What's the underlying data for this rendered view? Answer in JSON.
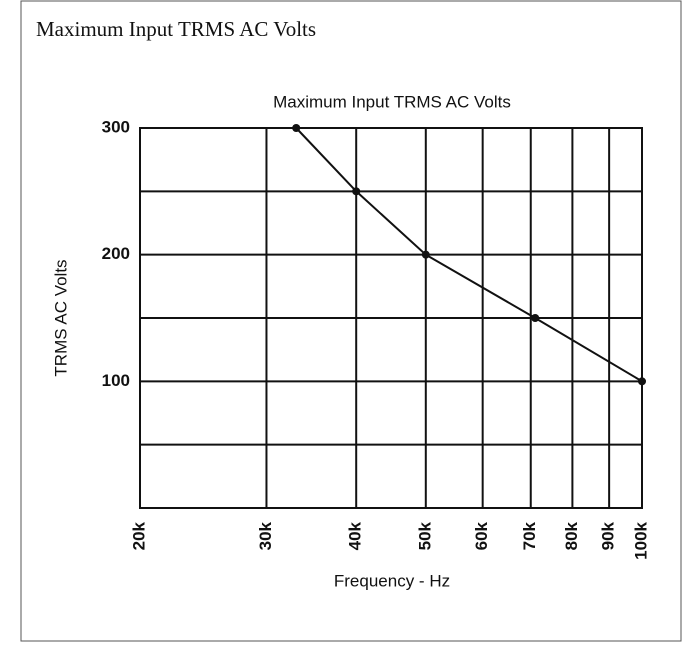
{
  "header": {
    "title": "Maximum Input TRMS AC Volts"
  },
  "chart_data": {
    "type": "line",
    "title": "Maximum Input TRMS AC Volts",
    "x_label": "Frequency - Hz",
    "y_label": "TRMS AC Volts",
    "x": [
      33000,
      40000,
      50000,
      71000,
      100000
    ],
    "values": [
      300,
      250,
      200,
      150,
      100
    ],
    "color": "#111111",
    "xscale": "log",
    "xlim": [
      20000,
      100000
    ],
    "xticks": [
      {
        "value": 20000,
        "label": "20k"
      },
      {
        "value": 30000,
        "label": "30k"
      },
      {
        "value": 40000,
        "label": "40k"
      },
      {
        "value": 50000,
        "label": "50k"
      },
      {
        "value": 60000,
        "label": "60k"
      },
      {
        "value": 70000,
        "label": "70k"
      },
      {
        "value": 80000,
        "label": "80k"
      },
      {
        "value": 90000,
        "label": "90k"
      },
      {
        "value": 100000,
        "label": "100k"
      }
    ],
    "ylim": [
      0,
      300
    ],
    "yticks": [
      100,
      200,
      300
    ],
    "y_minor_ticks": [
      50,
      150,
      250
    ],
    "grid": true
  }
}
